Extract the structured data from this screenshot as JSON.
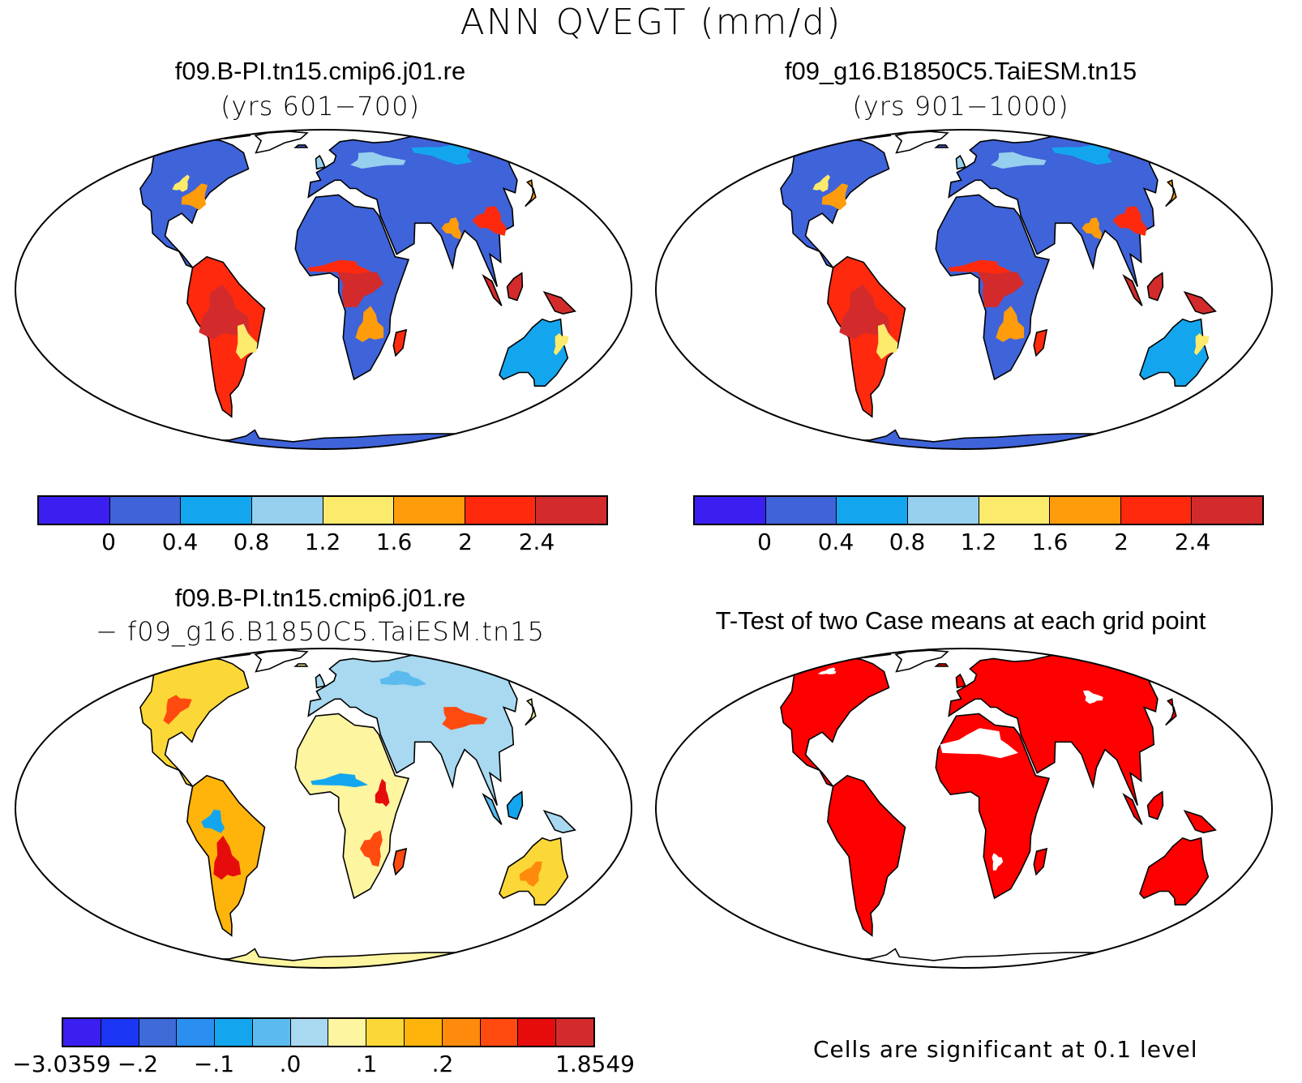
{
  "title": "ANN QVEGT (mm/d)",
  "panels": {
    "case1": {
      "title": "f09.B-PI.tn15.cmip6.j01.re",
      "subtitle": "(yrs 601−700)",
      "colorbar": {
        "colors": [
          "#3b1ff0",
          "#3f63d9",
          "#13a6ee",
          "#97cfee",
          "#fbea6c",
          "#ff9c0c",
          "#ff2a0e",
          "#d32b2b"
        ],
        "labels": [
          "0",
          "0.4",
          "0.8",
          "1.2",
          "1.6",
          "2",
          "2.4"
        ]
      }
    },
    "case2": {
      "title": "f09_g16.B1850C5.TaiESM.tn15",
      "subtitle": "(yrs 901−1000)",
      "colorbar": {
        "colors": [
          "#3b1ff0",
          "#3f63d9",
          "#13a6ee",
          "#97cfee",
          "#fbea6c",
          "#ff9c0c",
          "#ff2a0e",
          "#d32b2b"
        ],
        "labels": [
          "0",
          "0.4",
          "0.8",
          "1.2",
          "1.6",
          "2",
          "2.4"
        ]
      }
    },
    "diff": {
      "title": "f09.B-PI.tn15.cmip6.j01.re",
      "subtitle": "− f09_g16.B1850C5.TaiESM.tn15",
      "colorbar": {
        "colors": [
          "#3b1ff0",
          "#1b36f5",
          "#3f6bd9",
          "#2a8ff0",
          "#13a6ee",
          "#5bbbee",
          "#a8d9f0",
          "#fdf5a0",
          "#fbd838",
          "#ffb40c",
          "#ff8a0c",
          "#ff4a10",
          "#e60c0c",
          "#d32b2b"
        ],
        "labels": [
          "−3.0359",
          "−.2",
          "−.1",
          ".0",
          ".1",
          ".2",
          "1.8549"
        ]
      }
    },
    "ttest": {
      "title": "T-Test of two Case means at each grid point",
      "note": "Cells are significant at 0.1 level",
      "significant_color": "#ff0000"
    }
  }
}
